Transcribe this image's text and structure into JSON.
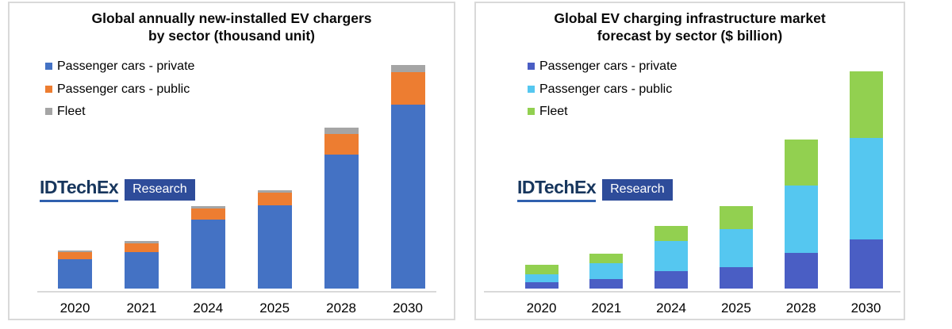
{
  "page": {
    "background": "#ffffff"
  },
  "logo": {
    "brand": "IDTechEx",
    "sub": "Research",
    "brand_color": "#17365d",
    "underline_color": "#3060ae",
    "box_color": "#2e4c9a"
  },
  "charts": [
    {
      "title_line1": "Global annually new-installed EV chargers",
      "title_line2": "by sector (thousand unit)",
      "legend": [
        {
          "label": "Passenger cars - private",
          "color": "#4472c4"
        },
        {
          "label": "Passenger cars - public",
          "color": "#ed7d31"
        },
        {
          "label": "Fleet",
          "color": "#a5a5a5"
        }
      ],
      "chart_data": {
        "type": "bar",
        "stacked": true,
        "title": "Global annually new-installed EV chargers by sector (thousand unit)",
        "xlabel": "",
        "ylabel": "thousand unit",
        "categories": [
          "2020",
          "2021",
          "2024",
          "2025",
          "2028",
          "2030"
        ],
        "series": [
          {
            "name": "Passenger cars - private",
            "color": "#4472c4",
            "values": [
              37,
              46,
              87,
              105,
              169,
              232
            ]
          },
          {
            "name": "Passenger cars - public",
            "color": "#ed7d31",
            "values": [
              9,
              11,
              14,
              16,
              26,
              41
            ]
          },
          {
            "name": "Fleet",
            "color": "#a5a5a5",
            "values": [
              2,
              3,
              3,
              3,
              8,
              9
            ]
          }
        ],
        "legend_position": "top-left",
        "grid": false,
        "y_axis_tick_labels_visible": false,
        "scale_note": "no y-axis scale shown in image; values are relative stacked-segment heights"
      }
    },
    {
      "title_line1": "Global EV charging infrastructure market",
      "title_line2": "forecast by sector ($ billion)",
      "legend": [
        {
          "label": "Passenger cars - private",
          "color": "#4a5ec4"
        },
        {
          "label": "Passenger cars - public",
          "color": "#55c7f0"
        },
        {
          "label": "Fleet",
          "color": "#92d050"
        }
      ],
      "chart_data": {
        "type": "bar",
        "stacked": true,
        "title": "Global EV charging infrastructure market forecast by sector ($ billion)",
        "xlabel": "",
        "ylabel": "$ billion",
        "categories": [
          "2020",
          "2021",
          "2024",
          "2025",
          "2028",
          "2030"
        ],
        "series": [
          {
            "name": "Passenger cars - private",
            "color": "#4a5ec4",
            "values": [
              8,
              12,
              22,
              27,
              45,
              62
            ]
          },
          {
            "name": "Passenger cars - public",
            "color": "#55c7f0",
            "values": [
              10,
              20,
              38,
              48,
              85,
              128
            ]
          },
          {
            "name": "Fleet",
            "color": "#92d050",
            "values": [
              12,
              12,
              19,
              29,
              58,
              84
            ]
          }
        ],
        "legend_position": "top-left",
        "grid": false,
        "y_axis_tick_labels_visible": false,
        "scale_note": "no y-axis scale shown in image; values are relative stacked-segment heights"
      }
    }
  ]
}
